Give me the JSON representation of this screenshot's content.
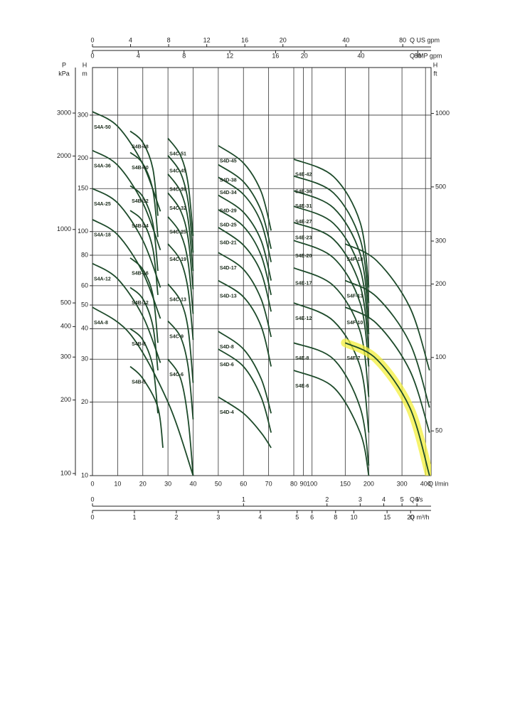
{
  "chart_data": {
    "type": "line",
    "xscale": "linear-log",
    "xbreak": 80,
    "xlim": [
      0,
      428
    ],
    "xticks": [
      0,
      10,
      20,
      30,
      40,
      50,
      60,
      70,
      80,
      90,
      100,
      150,
      200,
      300,
      400
    ],
    "xlabel": "Q l/min",
    "yscale": "log",
    "ylim": [
      10,
      470
    ],
    "yticks": [
      10,
      20,
      30,
      40,
      50,
      60,
      80,
      100,
      150,
      200,
      300
    ],
    "ylabel": [
      "H",
      "m"
    ],
    "y2lim": [
      32.8,
      1542
    ],
    "y2ticks": [
      50,
      100,
      200,
      300,
      500,
      1000
    ],
    "y2label": [
      "H",
      "ft"
    ],
    "y3lim": [
      98,
      4610
    ],
    "y3ticks": [
      100,
      200,
      300,
      400,
      500,
      1000,
      2000,
      3000
    ],
    "y3label": [
      "P",
      "kPa"
    ],
    "extra_x_axes": [
      {
        "label": "Q US gpm",
        "xlim": [
          0,
          113.1
        ],
        "xticks": [
          0,
          4,
          8,
          12,
          16,
          20,
          40,
          80
        ]
      },
      {
        "label": "Q IMP gpm",
        "xlim": [
          0,
          94.1
        ],
        "xticks": [
          0,
          4,
          8,
          12,
          16,
          20,
          40,
          80
        ]
      },
      {
        "label": "Q l/s",
        "xlim": [
          0,
          7.13
        ],
        "xticks": [
          0,
          1,
          2,
          3,
          4,
          5,
          6
        ]
      },
      {
        "label": "Q m³/h",
        "xlim": [
          0,
          25.68
        ],
        "xticks": [
          0,
          1,
          2,
          3,
          4,
          5,
          6,
          8,
          10,
          15,
          20
        ]
      }
    ],
    "grid": true,
    "color": "#1d4a2a",
    "series": [
      {
        "name": "S4A-50",
        "x": [
          0,
          10,
          20,
          27
        ],
        "values": [
          310,
          270,
          189,
          121
        ]
      },
      {
        "name": "S4A-36",
        "x": [
          0,
          10,
          20,
          27
        ],
        "values": [
          215,
          187,
          131,
          84
        ]
      },
      {
        "name": "S4A-25",
        "x": [
          0,
          10,
          20,
          27
        ],
        "values": [
          150,
          131,
          92,
          59
        ]
      },
      {
        "name": "S4A-18",
        "x": [
          0,
          10,
          20,
          27
        ],
        "values": [
          112,
          97,
          68,
          44
        ]
      },
      {
        "name": "S4A-12",
        "x": [
          0,
          10,
          20,
          27
        ],
        "values": [
          74,
          64,
          45,
          29
        ]
      },
      {
        "name": "S4A-8",
        "x": [
          0,
          15,
          30,
          40
        ],
        "values": [
          49,
          38,
          20,
          10
        ]
      },
      {
        "name": "S4B-48",
        "x": [
          15,
          20,
          24,
          26
        ],
        "values": [
          258,
          232,
          181,
          116
        ]
      },
      {
        "name": "S4B-40",
        "x": [
          15,
          20,
          24,
          26
        ],
        "values": [
          211,
          190,
          148,
          95
        ]
      },
      {
        "name": "S4B-32",
        "x": [
          15,
          20,
          24,
          26
        ],
        "values": [
          154,
          139,
          108,
          69
        ]
      },
      {
        "name": "S4B-24",
        "x": [
          15,
          20,
          24,
          26
        ],
        "values": [
          122,
          110,
          85,
          55
        ]
      },
      {
        "name": "S4B-16",
        "x": [
          15,
          20,
          24,
          26
        ],
        "values": [
          78,
          70,
          55,
          35
        ]
      },
      {
        "name": "S4B-12",
        "x": [
          15,
          20,
          24,
          26
        ],
        "values": [
          59,
          53,
          41,
          27
        ]
      },
      {
        "name": "S4B-8",
        "x": [
          15,
          20,
          24,
          26
        ],
        "values": [
          40,
          36,
          28,
          18
        ]
      },
      {
        "name": "S4B-5",
        "x": [
          15,
          20,
          26,
          28
        ],
        "values": [
          28,
          25,
          19,
          13
        ]
      },
      {
        "name": "S4C-51",
        "x": [
          30,
          35,
          38,
          40
        ],
        "values": [
          241,
          205,
          157,
          96
        ]
      },
      {
        "name": "S4C-45",
        "x": [
          30,
          35,
          38,
          40
        ],
        "values": [
          205,
          174,
          133,
          82
        ]
      },
      {
        "name": "S4C-39",
        "x": [
          30,
          35,
          38,
          40
        ],
        "values": [
          172,
          146,
          112,
          69
        ]
      },
      {
        "name": "S4C-32",
        "x": [
          30,
          35,
          38,
          40
        ],
        "values": [
          144,
          122,
          94,
          58
        ]
      },
      {
        "name": "S4C-25",
        "x": [
          30,
          35,
          38,
          40
        ],
        "values": [
          115,
          98,
          75,
          46
        ]
      },
      {
        "name": "S4C-19",
        "x": [
          30,
          35,
          38,
          40
        ],
        "values": [
          89,
          76,
          58,
          36
        ]
      },
      {
        "name": "S4C-13",
        "x": [
          30,
          35,
          38,
          40
        ],
        "values": [
          61,
          52,
          40,
          24
        ]
      },
      {
        "name": "S4C-9",
        "x": [
          30,
          35,
          38,
          40
        ],
        "values": [
          43,
          37,
          28,
          17
        ]
      },
      {
        "name": "S4C-6",
        "x": [
          30,
          35,
          38,
          40
        ],
        "values": [
          30,
          25,
          17,
          10
        ]
      },
      {
        "name": "S4D-45",
        "x": [
          50,
          60,
          67,
          71
        ],
        "values": [
          225,
          191,
          146,
          101
        ]
      },
      {
        "name": "S4D-38",
        "x": [
          50,
          60,
          67,
          71
        ],
        "values": [
          188,
          160,
          122,
          85
        ]
      },
      {
        "name": "S4D-34",
        "x": [
          50,
          60,
          67,
          71
        ],
        "values": [
          167,
          142,
          109,
          75
        ]
      },
      {
        "name": "S4D-29",
        "x": [
          50,
          60,
          67,
          71
        ],
        "values": [
          141,
          120,
          92,
          63
        ]
      },
      {
        "name": "S4D-25",
        "x": [
          50,
          60,
          67,
          71
        ],
        "values": [
          123,
          105,
          80,
          55
        ]
      },
      {
        "name": "S4D-21",
        "x": [
          50,
          60,
          67,
          71
        ],
        "values": [
          104,
          88,
          68,
          47
        ]
      },
      {
        "name": "S4D-17",
        "x": [
          50,
          60,
          67,
          71
        ],
        "values": [
          82,
          70,
          53,
          37
        ]
      },
      {
        "name": "S4D-13",
        "x": [
          50,
          60,
          67,
          71
        ],
        "values": [
          63,
          54,
          41,
          28
        ]
      },
      {
        "name": "S4D-8",
        "x": [
          50,
          60,
          67,
          71
        ],
        "values": [
          39,
          33,
          25,
          18
        ]
      },
      {
        "name": "S4D-6",
        "x": [
          50,
          60,
          67,
          71
        ],
        "values": [
          33,
          28,
          21,
          15
        ]
      },
      {
        "name": "S4D-4",
        "x": [
          50,
          60,
          67,
          71
        ],
        "values": [
          21,
          18,
          15,
          13
        ]
      },
      {
        "name": "S4E-42",
        "x": [
          80,
          130,
          180,
          200
        ],
        "values": [
          198,
          168,
          109,
          59
        ]
      },
      {
        "name": "S4E-36",
        "x": [
          80,
          130,
          180,
          200
        ],
        "values": [
          169,
          144,
          93,
          51
        ]
      },
      {
        "name": "S4E-31",
        "x": [
          80,
          130,
          180,
          200
        ],
        "values": [
          147,
          125,
          81,
          44
        ]
      },
      {
        "name": "S4E-27",
        "x": [
          80,
          130,
          180,
          200
        ],
        "values": [
          127,
          108,
          70,
          38
        ]
      },
      {
        "name": "S4E-23",
        "x": [
          80,
          130,
          180,
          200
        ],
        "values": [
          109,
          93,
          60,
          33
        ]
      },
      {
        "name": "S4E-20",
        "x": [
          80,
          130,
          180,
          200
        ],
        "values": [
          92,
          78,
          51,
          28
        ]
      },
      {
        "name": "S4E-17",
        "x": [
          80,
          130,
          180,
          200
        ],
        "values": [
          71,
          60,
          39,
          21
        ]
      },
      {
        "name": "S4E-12",
        "x": [
          80,
          130,
          180,
          200
        ],
        "values": [
          51,
          43,
          28,
          15
        ]
      },
      {
        "name": "S4E-8",
        "x": [
          80,
          130,
          180,
          200
        ],
        "values": [
          35,
          30,
          19,
          11
        ]
      },
      {
        "name": "S4E-6",
        "x": [
          80,
          130,
          180,
          200
        ],
        "values": [
          27,
          23,
          15,
          10
        ]
      },
      {
        "name": "S4F-18",
        "x": [
          150,
          220,
          330,
          420
        ],
        "values": [
          89,
          76,
          49,
          27
        ]
      },
      {
        "name": "S4F-13",
        "x": [
          150,
          220,
          330,
          420
        ],
        "values": [
          63,
          54,
          35,
          19
        ]
      },
      {
        "name": "S4F-10",
        "x": [
          150,
          220,
          330,
          420
        ],
        "values": [
          49,
          42,
          27,
          15
        ]
      },
      {
        "name": "S4F-7",
        "x": [
          150,
          220,
          330,
          420
        ],
        "values": [
          35,
          30,
          19,
          10
        ],
        "highlight": "#f3ef3c"
      }
    ]
  }
}
